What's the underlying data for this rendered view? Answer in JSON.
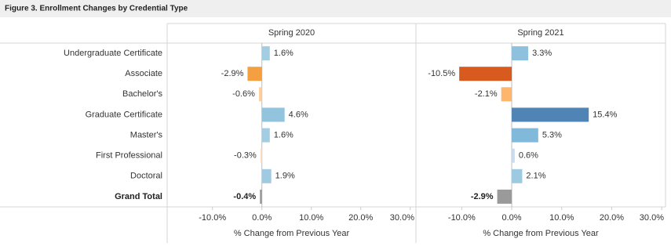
{
  "title": "Figure 3. Enrollment Changes by Credential Type",
  "chart_data": {
    "type": "bar",
    "categories": [
      "Undergraduate Certificate",
      "Associate",
      "Bachelor's",
      "Graduate Certificate",
      "Master's",
      "First Professional",
      "Doctoral",
      "Grand Total"
    ],
    "panels": [
      {
        "title": "Spring 2020",
        "values": [
          1.6,
          -2.9,
          -0.6,
          4.6,
          1.6,
          -0.3,
          1.9,
          -0.4
        ],
        "value_labels": [
          "1.6%",
          "-2.9%",
          "-0.6%",
          "4.6%",
          "1.6%",
          "-0.3%",
          "1.9%",
          "-0.4%"
        ],
        "colors": [
          "#a3cde3",
          "#f5a040",
          "#fdcf9f",
          "#92c4de",
          "#a3cde3",
          "#fde0c4",
          "#9fcae2",
          "#9a9a9a"
        ],
        "xlim": [
          -19,
          31
        ],
        "xticks": [
          {
            "value": -10,
            "label": "-10.0%"
          },
          {
            "value": 0,
            "label": "0.0%"
          },
          {
            "value": 10,
            "label": "10.0%"
          },
          {
            "value": 20,
            "label": "20.0%"
          },
          {
            "value": 30,
            "label": "30.0%"
          }
        ],
        "xlabel": "% Change from Previous Year"
      },
      {
        "title": "Spring 2021",
        "values": [
          3.3,
          -10.5,
          -2.1,
          15.4,
          5.3,
          0.6,
          2.1,
          -2.9
        ],
        "value_labels": [
          "3.3%",
          "-10.5%",
          "-2.1%",
          "15.4%",
          "5.3%",
          "0.6%",
          "2.1%",
          "-2.9%"
        ],
        "colors": [
          "#8ec1dd",
          "#d85a1e",
          "#fdb66c",
          "#4f84b5",
          "#80b9da",
          "#c8dcee",
          "#9ecae1",
          "#9a9a9a"
        ],
        "xlim": [
          -19,
          30.6
        ],
        "xticks": [
          {
            "value": -10,
            "label": "-10.0%"
          },
          {
            "value": 0,
            "label": "0.0%"
          },
          {
            "value": 10,
            "label": "10.0%"
          },
          {
            "value": 20,
            "label": "20.0%"
          },
          {
            "value": 30,
            "label": "30.0%"
          }
        ],
        "xlabel": "% Change from Previous Year"
      }
    ]
  }
}
